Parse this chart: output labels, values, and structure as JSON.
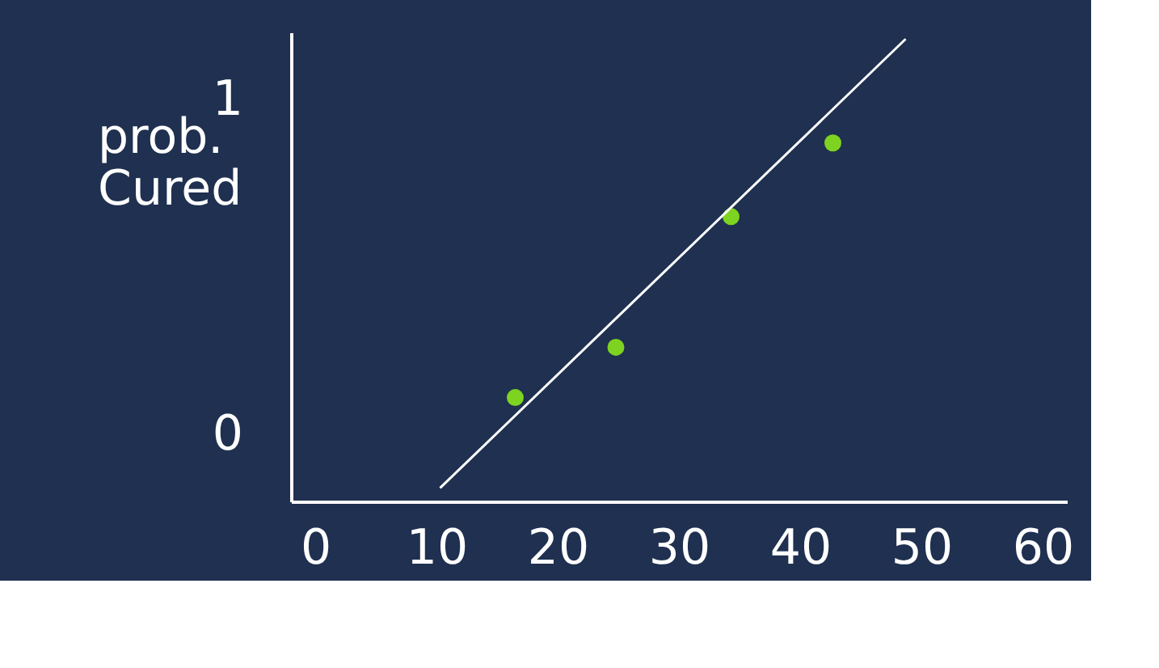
{
  "chart_data": {
    "type": "scatter",
    "ylabel": "prob. Cured",
    "xlim": [
      -2,
      62
    ],
    "ylim": [
      -0.2,
      1.2
    ],
    "xticks": [
      0,
      10,
      20,
      30,
      40,
      50,
      60
    ],
    "yticks": [
      0,
      1
    ],
    "grid": false,
    "marker": "circle",
    "series": [
      {
        "color": "#7ed321",
        "x": [
          16.5,
          24.8,
          34.3,
          42.7
        ],
        "values": [
          0.11,
          0.26,
          0.65,
          0.87
        ]
      },
      {
        "type": "line",
        "marker": "none",
        "color": "#ffffff",
        "x": [
          10.3,
          48.7
        ],
        "values": [
          -0.16,
          1.18
        ]
      }
    ]
  }
}
